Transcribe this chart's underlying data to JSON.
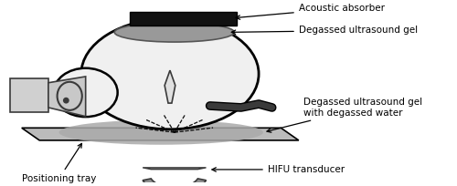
{
  "bg_color": "#ffffff",
  "fig_width": 5.0,
  "fig_height": 2.04,
  "dpi": 100,
  "labels": {
    "acoustic_absorber": "Acoustic absorber",
    "degassed_gel_top": "Degassed ultrasound gel",
    "degassed_gel_water": "Degassed ultrasound gel\nwith degassed water",
    "positioning_tray": "Positioning tray",
    "hifu_transducer": "HIFU transducer"
  },
  "colors": {
    "black": "#000000",
    "dark_gray": "#3a3a3a",
    "medium_gray": "#777777",
    "light_gray": "#b0b0b0",
    "very_light_gray": "#d8d8d8",
    "near_white": "#eeeeee",
    "absorber_black": "#111111",
    "hifu_gray": "#909090",
    "gel_oval_gray": "#aaaaaa",
    "body_fill": "#f0f0f0",
    "tray_fill": "#bbbbbb",
    "coil_fill": "#d0d0d0",
    "cone_fill": "#c8c8c8"
  },
  "layout": {
    "xlim": [
      0,
      500
    ],
    "ylim": [
      0,
      204
    ]
  }
}
